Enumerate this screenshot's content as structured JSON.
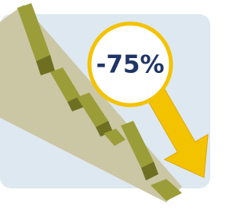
{
  "badge": {
    "label": "-75%"
  }
}
